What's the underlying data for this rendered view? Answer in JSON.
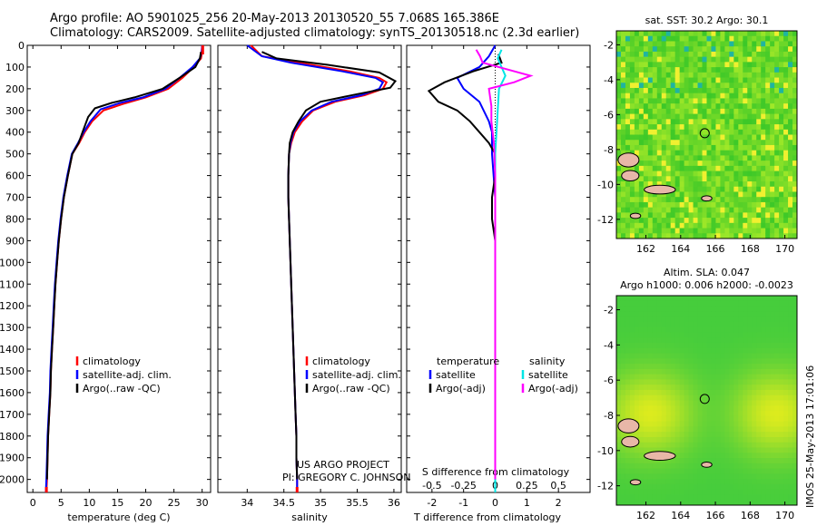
{
  "title_line1": "Argo profile: AO 5901025_256 20-May-2013 20130520_55 7.068S 165.386E",
  "title_line2": "Climatology: CARS2009. Satellite-adjusted climatology: synTS_20130518.nc (2.3d earlier)",
  "footer_vertical": "IMOS 25-May-2013 17:01:06",
  "colors": {
    "climatology": "#ff0000",
    "satellite": "#0000ff",
    "argo": "#000000",
    "sal_satellite": "#00e5e5",
    "sal_argo": "#ff00ff"
  },
  "chart_data": [
    {
      "id": "temperature",
      "type": "line",
      "xlabel": "temperature (deg C)",
      "ylabel": "",
      "xlim": [
        -1,
        31.5
      ],
      "ylim": [
        2060,
        0
      ],
      "xticks": [
        0,
        5,
        10,
        15,
        20,
        25,
        30
      ],
      "yticks": [
        0,
        100,
        200,
        300,
        400,
        500,
        600,
        700,
        800,
        900,
        1000,
        1100,
        1200,
        1300,
        1400,
        1500,
        1600,
        1700,
        1800,
        1900,
        2000
      ],
      "legend": [
        "climatology",
        "satellite-adj. clim.",
        "Argo(..raw -QC)"
      ],
      "series": [
        {
          "name": "climatology",
          "color": "#ff0000",
          "points": [
            [
              30.1,
              0
            ],
            [
              30,
              30
            ],
            [
              29.8,
              60
            ],
            [
              28.5,
              100
            ],
            [
              26.5,
              150
            ],
            [
              24,
              200
            ],
            [
              20,
              240
            ],
            [
              16,
              270
            ],
            [
              12.5,
              300
            ],
            [
              10.5,
              350
            ],
            [
              9.2,
              400
            ],
            [
              8.2,
              450
            ],
            [
              7,
              500
            ],
            [
              6.2,
              600
            ],
            [
              5.5,
              700
            ],
            [
              5,
              800
            ],
            [
              4.6,
              900
            ],
            [
              4.3,
              1000
            ],
            [
              4,
              1100
            ],
            [
              3.8,
              1200
            ],
            [
              3.6,
              1300
            ],
            [
              3.4,
              1400
            ],
            [
              3.2,
              1500
            ],
            [
              3.1,
              1600
            ],
            [
              2.9,
              1700
            ],
            [
              2.7,
              1800
            ],
            [
              2.6,
              1900
            ],
            [
              2.5,
              2000
            ],
            [
              2.4,
              2060
            ]
          ]
        },
        {
          "name": "satellite-adj. clim.",
          "color": "#0000ff",
          "points": [
            [
              30,
              0
            ],
            [
              29.9,
              30
            ],
            [
              29.6,
              60
            ],
            [
              28.3,
              100
            ],
            [
              26,
              150
            ],
            [
              23.5,
              200
            ],
            [
              19.5,
              240
            ],
            [
              15.5,
              265
            ],
            [
              12,
              295
            ],
            [
              10.2,
              350
            ],
            [
              9,
              400
            ],
            [
              8,
              450
            ],
            [
              6.9,
              500
            ],
            [
              6.1,
              600
            ],
            [
              5.4,
              700
            ],
            [
              4.9,
              800
            ],
            [
              4.5,
              900
            ],
            [
              4.2,
              1000
            ],
            [
              3.9,
              1100
            ],
            [
              3.7,
              1200
            ],
            [
              3.5,
              1300
            ],
            [
              3.3,
              1400
            ],
            [
              3.1,
              1500
            ],
            [
              3,
              1600
            ],
            [
              2.8,
              1700
            ],
            [
              2.6,
              1800
            ],
            [
              2.5,
              1900
            ],
            [
              2.4,
              2000
            ],
            [
              2.3,
              2060
            ]
          ]
        },
        {
          "name": "Argo(..raw -QC)",
          "color": "#000000",
          "points": [
            [
              29.8,
              30
            ],
            [
              29.6,
              60
            ],
            [
              28.8,
              100
            ],
            [
              26,
              150
            ],
            [
              23,
              200
            ],
            [
              18,
              240
            ],
            [
              14,
              265
            ],
            [
              11,
              290
            ],
            [
              9.8,
              330
            ],
            [
              8.8,
              400
            ],
            [
              8.1,
              450
            ],
            [
              7,
              500
            ],
            [
              6.2,
              600
            ],
            [
              5.5,
              700
            ],
            [
              5,
              800
            ],
            [
              4.6,
              900
            ],
            [
              4.3,
              1000
            ],
            [
              4,
              1100
            ],
            [
              3.8,
              1200
            ],
            [
              3.6,
              1300
            ],
            [
              3.4,
              1400
            ],
            [
              3.2,
              1500
            ],
            [
              3.1,
              1600
            ],
            [
              2.9,
              1700
            ],
            [
              2.7,
              1800
            ],
            [
              2.6,
              1900
            ],
            [
              2.5,
              2000
            ]
          ]
        }
      ]
    },
    {
      "id": "salinity",
      "type": "line",
      "xlabel": "salinity",
      "ylabel": "",
      "xlim": [
        33.6,
        36.1
      ],
      "ylim": [
        2060,
        0
      ],
      "xticks": [
        34,
        34.5,
        35,
        35.5,
        36
      ],
      "legend": [
        "climatology",
        "satellite-adj. clim.",
        "Argo(..raw -QC)"
      ],
      "series": [
        {
          "name": "climatology",
          "color": "#ff0000",
          "points": [
            [
              34.05,
              0
            ],
            [
              34.2,
              50
            ],
            [
              34.7,
              80
            ],
            [
              35.4,
              120
            ],
            [
              35.8,
              150
            ],
            [
              35.9,
              170
            ],
            [
              35.85,
              200
            ],
            [
              35.6,
              230
            ],
            [
              35.2,
              260
            ],
            [
              34.9,
              300
            ],
            [
              34.75,
              350
            ],
            [
              34.65,
              400
            ],
            [
              34.6,
              450
            ],
            [
              34.57,
              500
            ],
            [
              34.56,
              600
            ],
            [
              34.56,
              700
            ],
            [
              34.57,
              800
            ],
            [
              34.58,
              900
            ],
            [
              34.59,
              1000
            ],
            [
              34.6,
              1100
            ],
            [
              34.61,
              1200
            ],
            [
              34.62,
              1300
            ],
            [
              34.63,
              1400
            ],
            [
              34.64,
              1500
            ],
            [
              34.65,
              1600
            ],
            [
              34.66,
              1700
            ],
            [
              34.67,
              1800
            ],
            [
              34.67,
              1900
            ],
            [
              34.68,
              2000
            ],
            [
              34.68,
              2060
            ]
          ]
        },
        {
          "name": "satellite-adj. clim.",
          "color": "#0000ff",
          "points": [
            [
              34,
              0
            ],
            [
              34.2,
              50
            ],
            [
              34.6,
              80
            ],
            [
              35.3,
              120
            ],
            [
              35.75,
              150
            ],
            [
              35.85,
              170
            ],
            [
              35.8,
              200
            ],
            [
              35.55,
              230
            ],
            [
              35.15,
              260
            ],
            [
              34.88,
              300
            ],
            [
              34.72,
              350
            ],
            [
              34.63,
              400
            ],
            [
              34.59,
              450
            ],
            [
              34.57,
              500
            ],
            [
              34.56,
              600
            ],
            [
              34.56,
              700
            ],
            [
              34.57,
              800
            ],
            [
              34.58,
              900
            ],
            [
              34.59,
              1000
            ],
            [
              34.6,
              1100
            ],
            [
              34.61,
              1200
            ],
            [
              34.62,
              1300
            ],
            [
              34.63,
              1400
            ],
            [
              34.64,
              1500
            ],
            [
              34.65,
              1600
            ],
            [
              34.66,
              1700
            ],
            [
              34.67,
              1800
            ],
            [
              34.67,
              1900
            ],
            [
              34.68,
              2000
            ],
            [
              34.68,
              2060
            ]
          ]
        },
        {
          "name": "Argo(..raw -QC)",
          "color": "#000000",
          "points": [
            [
              34.2,
              30
            ],
            [
              34.4,
              60
            ],
            [
              35.1,
              90
            ],
            [
              35.8,
              125
            ],
            [
              36.02,
              165
            ],
            [
              35.95,
              195
            ],
            [
              35.5,
              225
            ],
            [
              35,
              260
            ],
            [
              34.8,
              300
            ],
            [
              34.7,
              350
            ],
            [
              34.62,
              400
            ],
            [
              34.58,
              450
            ],
            [
              34.57,
              500
            ],
            [
              34.56,
              600
            ],
            [
              34.56,
              700
            ],
            [
              34.57,
              800
            ],
            [
              34.58,
              900
            ],
            [
              34.59,
              1000
            ],
            [
              34.6,
              1100
            ],
            [
              34.61,
              1200
            ],
            [
              34.62,
              1300
            ],
            [
              34.63,
              1400
            ],
            [
              34.64,
              1500
            ],
            [
              34.65,
              1600
            ],
            [
              34.66,
              1700
            ],
            [
              34.67,
              1800
            ],
            [
              34.67,
              1900
            ],
            [
              34.68,
              2000
            ]
          ]
        }
      ]
    },
    {
      "id": "difference",
      "type": "line",
      "xlabel": "T difference from climatology",
      "xlabel_top": "S difference from climatology",
      "xlim": [
        -2.8,
        3.0
      ],
      "ylim": [
        2060,
        0
      ],
      "xticks": [
        -2,
        -1,
        0,
        1,
        2
      ],
      "xticks_salinity": [
        -0.5,
        -0.25,
        0,
        0.25,
        0.5
      ],
      "legend_temperature_title": "temperature",
      "legend_salinity_title": "salinity",
      "legend": [
        "satellite",
        "Argo(-adj)",
        "satellite",
        "Argo(-adj)"
      ],
      "series": [
        {
          "name": "T satellite",
          "color": "#0000ff",
          "points": [
            [
              0,
              0
            ],
            [
              -0.2,
              50
            ],
            [
              -0.5,
              100
            ],
            [
              -1.2,
              150
            ],
            [
              -1,
              200
            ],
            [
              -0.5,
              260
            ],
            [
              -0.2,
              350
            ],
            [
              -0.1,
              400
            ],
            [
              -0.1,
              500
            ],
            [
              0,
              700
            ],
            [
              0,
              1000
            ],
            [
              0,
              1500
            ],
            [
              0,
              2000
            ],
            [
              0,
              2060
            ]
          ]
        },
        {
          "name": "T Argo(-adj)",
          "color": "#000000",
          "points": [
            [
              0.1,
              40
            ],
            [
              0.2,
              80
            ],
            [
              -0.7,
              120
            ],
            [
              -1.6,
              170
            ],
            [
              -2.1,
              210
            ],
            [
              -1.8,
              260
            ],
            [
              -1.2,
              300
            ],
            [
              -0.8,
              350
            ],
            [
              -0.5,
              400
            ],
            [
              -0.2,
              450
            ],
            [
              0,
              500
            ],
            [
              0,
              600
            ],
            [
              -0.1,
              700
            ],
            [
              -0.1,
              800
            ],
            [
              0,
              900
            ],
            [
              0,
              1000
            ],
            [
              0,
              1500
            ],
            [
              0,
              1800
            ],
            [
              0,
              2000
            ]
          ]
        },
        {
          "name": "S satellite",
          "color": "#00e5e5",
          "points": [
            [
              0.05,
              20
            ],
            [
              0.02,
              60
            ],
            [
              0.05,
              100
            ],
            [
              0.08,
              140
            ],
            [
              0.03,
              200
            ],
            [
              0.02,
              300
            ],
            [
              0,
              500
            ],
            [
              0,
              1000
            ],
            [
              0,
              1500
            ],
            [
              0,
              2000
            ],
            [
              0,
              2060
            ]
          ]
        },
        {
          "name": "S Argo(-adj)",
          "color": "#ff00ff",
          "points": [
            [
              -0.15,
              20
            ],
            [
              -0.12,
              50
            ],
            [
              -0.1,
              80
            ],
            [
              0.28,
              140
            ],
            [
              0.15,
              170
            ],
            [
              -0.05,
              200
            ],
            [
              -0.03,
              280
            ],
            [
              -0.03,
              350
            ],
            [
              -0.01,
              450
            ],
            [
              0,
              600
            ],
            [
              0,
              1000
            ],
            [
              0,
              1500
            ],
            [
              0,
              2000
            ]
          ]
        }
      ]
    },
    {
      "id": "sst_map",
      "type": "heatmap",
      "title": "sat. SST: 30.2  Argo: 30.1",
      "xticks": [
        162,
        164,
        166,
        168,
        170
      ],
      "yticks": [
        -2,
        -4,
        -6,
        -8,
        -10,
        -12
      ],
      "xlim": [
        160.3,
        170.7
      ],
      "ylim": [
        -13.1,
        -1.2
      ],
      "argo_marker": [
        165.386,
        -7.068
      ]
    },
    {
      "id": "sla_map",
      "type": "heatmap",
      "title_line1": "Altim. SLA: 0.047",
      "title_line2": "Argo h1000: 0.006 h2000: -0.0023",
      "xticks": [
        162,
        164,
        166,
        168,
        170
      ],
      "yticks": [
        -2,
        -4,
        -6,
        -8,
        -10,
        -12
      ],
      "xlim": [
        160.3,
        170.7
      ],
      "ylim": [
        -13.1,
        -1.2
      ],
      "argo_marker": [
        165.386,
        -7.068
      ]
    }
  ],
  "credit_line1": "US ARGO PROJECT",
  "credit_line2": "PI: GREGORY C. JOHNSON"
}
